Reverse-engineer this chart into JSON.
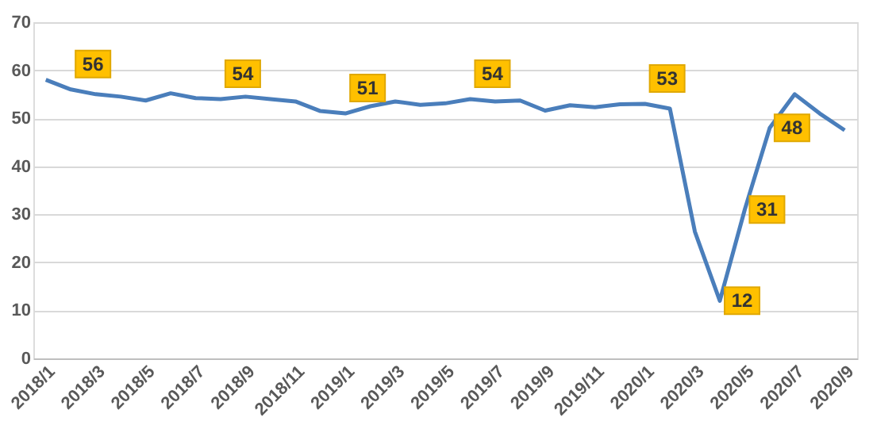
{
  "chart_data": {
    "type": "line",
    "categories": [
      "2018/1",
      null,
      "2018/3",
      null,
      "2018/5",
      null,
      "2018/7",
      null,
      "2018/9",
      null,
      "2018/11",
      null,
      "2019/1",
      null,
      "2019/3",
      null,
      "2019/5",
      null,
      "2019/7",
      null,
      "2019/9",
      null,
      "2019/11",
      null,
      "2020/1",
      null,
      "2020/3",
      null,
      "2020/5",
      null,
      "2020/7",
      null,
      "2020/9"
    ],
    "series": [
      {
        "color": "#4a7ebb",
        "values": [
          58,
          56,
          55,
          54.5,
          53.7,
          55.2,
          54.2,
          54,
          54.5,
          54,
          53.5,
          51.5,
          51,
          52.5,
          53.5,
          52.8,
          53.1,
          54,
          53.5,
          53.7,
          51.6,
          52.7,
          52.3,
          52.9,
          53,
          52,
          26.4,
          12,
          31,
          48,
          55,
          51,
          47.5
        ],
        "value_labels": [
          null,
          "56",
          null,
          null,
          null,
          null,
          null,
          "54",
          null,
          null,
          null,
          null,
          "51",
          null,
          null,
          null,
          null,
          "54",
          null,
          null,
          null,
          null,
          null,
          null,
          "53",
          null,
          null,
          "12",
          "31",
          "48",
          null,
          null,
          null
        ]
      }
    ],
    "ylim": [
      0,
      70
    ],
    "yticks": [
      0,
      10,
      20,
      30,
      40,
      50,
      60,
      70
    ],
    "grid": "y",
    "marker": "none",
    "line_style": "solid"
  }
}
